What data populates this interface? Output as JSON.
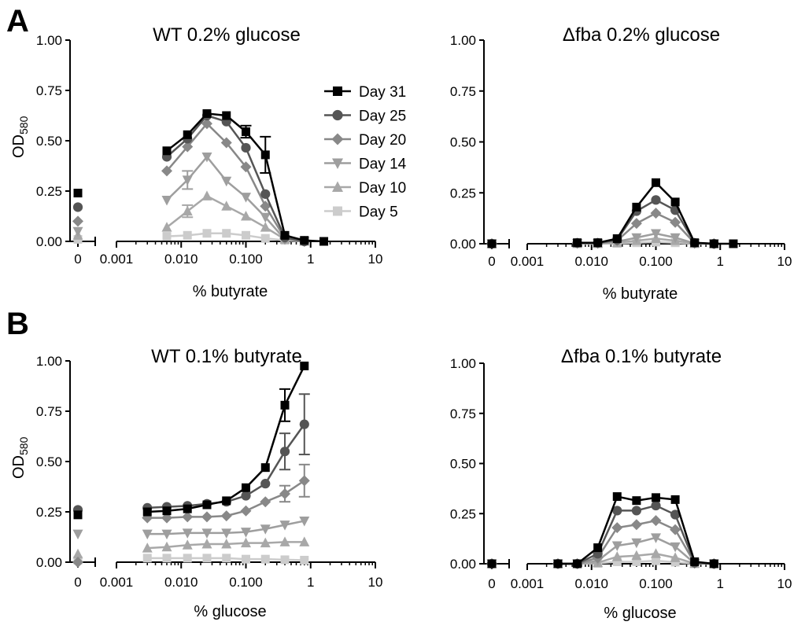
{
  "panel_labels": [
    "A",
    "B"
  ],
  "legend": [
    {
      "name": "Day 31",
      "color": "#000000",
      "marker": "square"
    },
    {
      "name": "Day 25",
      "color": "#555555",
      "marker": "circle"
    },
    {
      "name": "Day 20",
      "color": "#888888",
      "marker": "diamond"
    },
    {
      "name": "Day 14",
      "color": "#9e9e9e",
      "marker": "triangle-down"
    },
    {
      "name": "Day 10",
      "color": "#a8a8a8",
      "marker": "triangle-up"
    },
    {
      "name": "Day 5",
      "color": "#cccccc",
      "marker": "square"
    }
  ],
  "chart_data": [
    {
      "type": "line",
      "title": "WT 0.2% glucose",
      "xlabel": "% butyrate",
      "ylabel": "OD",
      "ylabel_sub": "580",
      "x_scale": "log",
      "x_zero_label": "0",
      "xticks": [
        "0.001",
        "0.010",
        "0.100",
        "1",
        "10"
      ],
      "yticks": [
        "0.00",
        "0.25",
        "0.50",
        "0.75",
        "1.00"
      ],
      "xlim": [
        0.001,
        10
      ],
      "ylim": [
        0,
        1
      ],
      "legend_position": "top-right",
      "x": [
        0.006,
        0.0125,
        0.025,
        0.05,
        0.1,
        0.2,
        0.4,
        0.8,
        1.6
      ],
      "series": [
        {
          "name": "Day 31",
          "zero": 0.24,
          "values": [
            0.45,
            0.53,
            0.635,
            0.625,
            0.545,
            0.43,
            0.03,
            0.005,
            0.0
          ],
          "errors": [
            0,
            0,
            0,
            0,
            0.03,
            0.09,
            0,
            0,
            0
          ]
        },
        {
          "name": "Day 25",
          "zero": 0.17,
          "values": [
            0.42,
            0.51,
            0.625,
            0.595,
            0.465,
            0.235,
            0.02,
            0.0,
            null
          ],
          "errors": [
            0,
            0,
            0,
            0,
            0,
            0,
            0,
            0,
            0
          ]
        },
        {
          "name": "Day 20",
          "zero": 0.1,
          "values": [
            0.35,
            0.47,
            0.585,
            0.49,
            0.37,
            0.175,
            0.015,
            0.0,
            null
          ],
          "errors": [
            0,
            0,
            0,
            0,
            0,
            0,
            0,
            0,
            0
          ]
        },
        {
          "name": "Day 14",
          "zero": 0.05,
          "values": [
            0.205,
            0.305,
            0.42,
            0.3,
            0.22,
            0.12,
            0.01,
            0.0,
            null
          ],
          "errors": [
            0,
            0.045,
            0,
            0,
            0,
            0,
            0,
            0,
            0
          ]
        },
        {
          "name": "Day 10",
          "zero": 0.03,
          "values": [
            0.07,
            0.15,
            0.225,
            0.175,
            0.125,
            0.07,
            0.01,
            0.0,
            null
          ],
          "errors": [
            0,
            0.03,
            0,
            0,
            0,
            0,
            0,
            0,
            0
          ]
        },
        {
          "name": "Day 5",
          "zero": 0.01,
          "values": [
            0.025,
            0.03,
            0.04,
            0.04,
            0.03,
            0.015,
            0.005,
            0.0,
            null
          ],
          "errors": [
            0,
            0,
            0,
            0,
            0,
            0,
            0,
            0,
            0
          ]
        }
      ]
    },
    {
      "type": "line",
      "title": "Δfba 0.2% glucose",
      "xlabel": "% butyrate",
      "ylabel": "",
      "ylabel_sub": "",
      "x_scale": "log",
      "x_zero_label": "0",
      "xticks": [
        "0.001",
        "0.010",
        "0.100",
        "1",
        "10"
      ],
      "yticks": [
        "0.00",
        "0.25",
        "0.50",
        "0.75",
        "1.00"
      ],
      "xlim": [
        0.001,
        10
      ],
      "ylim": [
        0,
        1
      ],
      "x": [
        0.006,
        0.0125,
        0.025,
        0.05,
        0.1,
        0.2,
        0.4,
        0.8,
        1.6
      ],
      "series": [
        {
          "name": "Day 31",
          "zero": 0.0,
          "values": [
            0.005,
            0.005,
            0.025,
            0.18,
            0.3,
            0.205,
            0.005,
            0.0,
            0.0
          ],
          "errors": [
            0,
            0,
            0,
            0,
            0,
            0,
            0,
            0,
            0
          ]
        },
        {
          "name": "Day 25",
          "zero": 0.0,
          "values": [
            0.004,
            0.004,
            0.02,
            0.16,
            0.215,
            0.165,
            0.004,
            0.0,
            null
          ],
          "errors": [
            0,
            0,
            0,
            0,
            0,
            0,
            0,
            0,
            0
          ]
        },
        {
          "name": "Day 20",
          "zero": 0.0,
          "values": [
            0.003,
            0.003,
            0.015,
            0.1,
            0.15,
            0.105,
            0.003,
            0.0,
            null
          ],
          "errors": [
            0,
            0,
            0,
            0,
            0,
            0,
            0,
            0,
            0
          ]
        },
        {
          "name": "Day 14",
          "zero": 0.0,
          "values": [
            0.002,
            0.002,
            0.01,
            0.03,
            0.05,
            0.03,
            0.002,
            0.0,
            null
          ],
          "errors": [
            0,
            0,
            0,
            0,
            0,
            0,
            0,
            0,
            0
          ]
        },
        {
          "name": "Day 10",
          "zero": 0.0,
          "values": [
            0.001,
            0.001,
            0.005,
            0.015,
            0.025,
            0.015,
            0.001,
            0.0,
            null
          ],
          "errors": [
            0,
            0,
            0,
            0,
            0,
            0,
            0,
            0,
            0
          ]
        },
        {
          "name": "Day 5",
          "zero": 0.0,
          "values": [
            0.0,
            0.0,
            0.002,
            0.005,
            0.008,
            0.005,
            0.0,
            0.0,
            null
          ],
          "errors": [
            0,
            0,
            0,
            0,
            0,
            0,
            0,
            0,
            0
          ]
        }
      ]
    },
    {
      "type": "line",
      "title": "WT 0.1% butyrate",
      "xlabel": "% glucose",
      "ylabel": "OD",
      "ylabel_sub": "580",
      "x_scale": "log",
      "x_zero_label": "0",
      "xticks": [
        "0.001",
        "0.010",
        "0.100",
        "1",
        "10"
      ],
      "yticks": [
        "0.00",
        "0.25",
        "0.50",
        "0.75",
        "1.00"
      ],
      "xlim": [
        0.001,
        10
      ],
      "ylim": [
        0,
        1
      ],
      "x": [
        0.003,
        0.006,
        0.0125,
        0.025,
        0.05,
        0.1,
        0.2,
        0.4,
        0.8
      ],
      "series": [
        {
          "name": "Day 31",
          "zero": 0.235,
          "values": [
            0.25,
            0.255,
            0.265,
            0.285,
            0.305,
            0.37,
            0.47,
            0.78,
            0.975
          ],
          "errors": [
            0,
            0,
            0,
            0,
            0,
            0,
            0,
            0.08,
            0
          ]
        },
        {
          "name": "Day 25",
          "zero": 0.26,
          "values": [
            0.27,
            0.275,
            0.28,
            0.29,
            0.3,
            0.33,
            0.39,
            0.55,
            0.685
          ],
          "errors": [
            0,
            0,
            0,
            0,
            0,
            0,
            0,
            0.09,
            0.15
          ]
        },
        {
          "name": "Day 20",
          "zero": 0.0,
          "values": [
            0.22,
            0.22,
            0.225,
            0.225,
            0.23,
            0.255,
            0.3,
            0.34,
            0.405
          ],
          "errors": [
            0,
            0,
            0,
            0,
            0,
            0,
            0,
            0.04,
            0.08
          ]
        },
        {
          "name": "Day 14",
          "zero": 0.14,
          "values": [
            0.14,
            0.14,
            0.145,
            0.145,
            0.145,
            0.15,
            0.165,
            0.185,
            0.205
          ],
          "errors": [
            0,
            0,
            0,
            0,
            0,
            0,
            0,
            0,
            0
          ]
        },
        {
          "name": "Day 10",
          "zero": 0.04,
          "values": [
            0.07,
            0.075,
            0.085,
            0.09,
            0.09,
            0.095,
            0.095,
            0.1,
            0.1
          ],
          "errors": [
            0,
            0,
            0,
            0,
            0,
            0,
            0,
            0,
            0
          ]
        },
        {
          "name": "Day 5",
          "zero": 0.01,
          "values": [
            0.02,
            0.02,
            0.02,
            0.02,
            0.02,
            0.015,
            0.015,
            0.012,
            0.01
          ],
          "errors": [
            0,
            0,
            0,
            0,
            0,
            0,
            0,
            0,
            0
          ]
        }
      ]
    },
    {
      "type": "line",
      "title": "Δfba 0.1% butyrate",
      "xlabel": "% glucose",
      "ylabel": "",
      "ylabel_sub": "",
      "x_scale": "log",
      "x_zero_label": "0",
      "xticks": [
        "0.001",
        "0.010",
        "0.100",
        "1",
        "10"
      ],
      "yticks": [
        "0.00",
        "0.25",
        "0.50",
        "0.75",
        "1.00"
      ],
      "xlim": [
        0.001,
        10
      ],
      "ylim": [
        0,
        1
      ],
      "x": [
        0.003,
        0.006,
        0.0125,
        0.025,
        0.05,
        0.1,
        0.2,
        0.4,
        0.8
      ],
      "series": [
        {
          "name": "Day 31",
          "zero": 0.0,
          "values": [
            0.0,
            0.0,
            0.08,
            0.335,
            0.315,
            0.33,
            0.32,
            0.01,
            0.0
          ],
          "errors": [
            0,
            0,
            0,
            0,
            0,
            0,
            0,
            0,
            0
          ]
        },
        {
          "name": "Day 25",
          "zero": 0.0,
          "values": [
            0.0,
            0.0,
            0.05,
            0.265,
            0.265,
            0.29,
            0.245,
            0.005,
            0.0
          ],
          "errors": [
            0,
            0,
            0,
            0,
            0,
            0,
            0,
            0,
            0
          ]
        },
        {
          "name": "Day 20",
          "zero": 0.0,
          "values": [
            0.0,
            0.0,
            0.03,
            0.18,
            0.195,
            0.215,
            0.17,
            0.003,
            0.0
          ],
          "errors": [
            0,
            0,
            0,
            0,
            0,
            0,
            0,
            0,
            0
          ]
        },
        {
          "name": "Day 14",
          "zero": 0.0,
          "values": [
            0.0,
            0.0,
            0.015,
            0.09,
            0.105,
            0.13,
            0.085,
            0.002,
            0.0
          ],
          "errors": [
            0,
            0,
            0,
            0,
            0,
            0,
            0,
            0,
            0
          ]
        },
        {
          "name": "Day 10",
          "zero": 0.0,
          "values": [
            0.0,
            0.0,
            0.005,
            0.035,
            0.04,
            0.05,
            0.03,
            0.001,
            0.0
          ],
          "errors": [
            0,
            0,
            0,
            0,
            0,
            0,
            0,
            0,
            0
          ]
        },
        {
          "name": "Day 5",
          "zero": 0.0,
          "values": [
            0.0,
            0.0,
            0.002,
            0.01,
            0.01,
            0.015,
            0.008,
            0.0,
            0.0
          ],
          "errors": [
            0,
            0,
            0,
            0,
            0,
            0,
            0,
            0,
            0
          ]
        }
      ]
    }
  ]
}
